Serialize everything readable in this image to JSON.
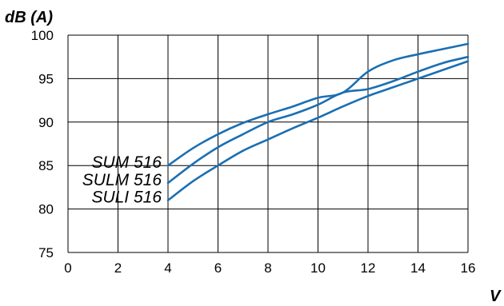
{
  "chart_data": {
    "type": "line",
    "title": "",
    "ylabel": "dB (A)",
    "xlabel": "V",
    "xlim": [
      0,
      16
    ],
    "ylim": [
      75,
      100
    ],
    "xticks": [
      0,
      2,
      4,
      6,
      8,
      10,
      12,
      14,
      16
    ],
    "yticks": [
      75,
      80,
      85,
      90,
      95,
      100
    ],
    "grid": true,
    "line_color": "#1a6fb3",
    "series": [
      {
        "name": "SUM 516",
        "x": [
          4,
          5,
          6,
          7,
          8,
          9,
          10,
          11,
          12,
          13,
          14,
          15,
          16
        ],
        "y": [
          85,
          87,
          88.6,
          89.9,
          90.9,
          91.8,
          92.8,
          93.4,
          95.8,
          97.1,
          97.8,
          98.4,
          99
        ]
      },
      {
        "name": "SULM 516",
        "x": [
          4,
          5,
          6,
          7,
          8,
          9,
          10,
          11,
          12,
          13,
          14,
          15,
          16
        ],
        "y": [
          83,
          85.2,
          87.1,
          88.6,
          90,
          90.9,
          92,
          93.4,
          93.8,
          94.7,
          95.8,
          96.8,
          97.5
        ]
      },
      {
        "name": "SULI 516",
        "x": [
          4,
          5,
          6,
          7,
          8,
          9,
          10,
          11,
          12,
          13,
          14,
          15,
          16
        ],
        "y": [
          81,
          83.2,
          85,
          86.7,
          88,
          89.3,
          90.5,
          91.8,
          93,
          94,
          95,
          96,
          97
        ]
      }
    ]
  }
}
